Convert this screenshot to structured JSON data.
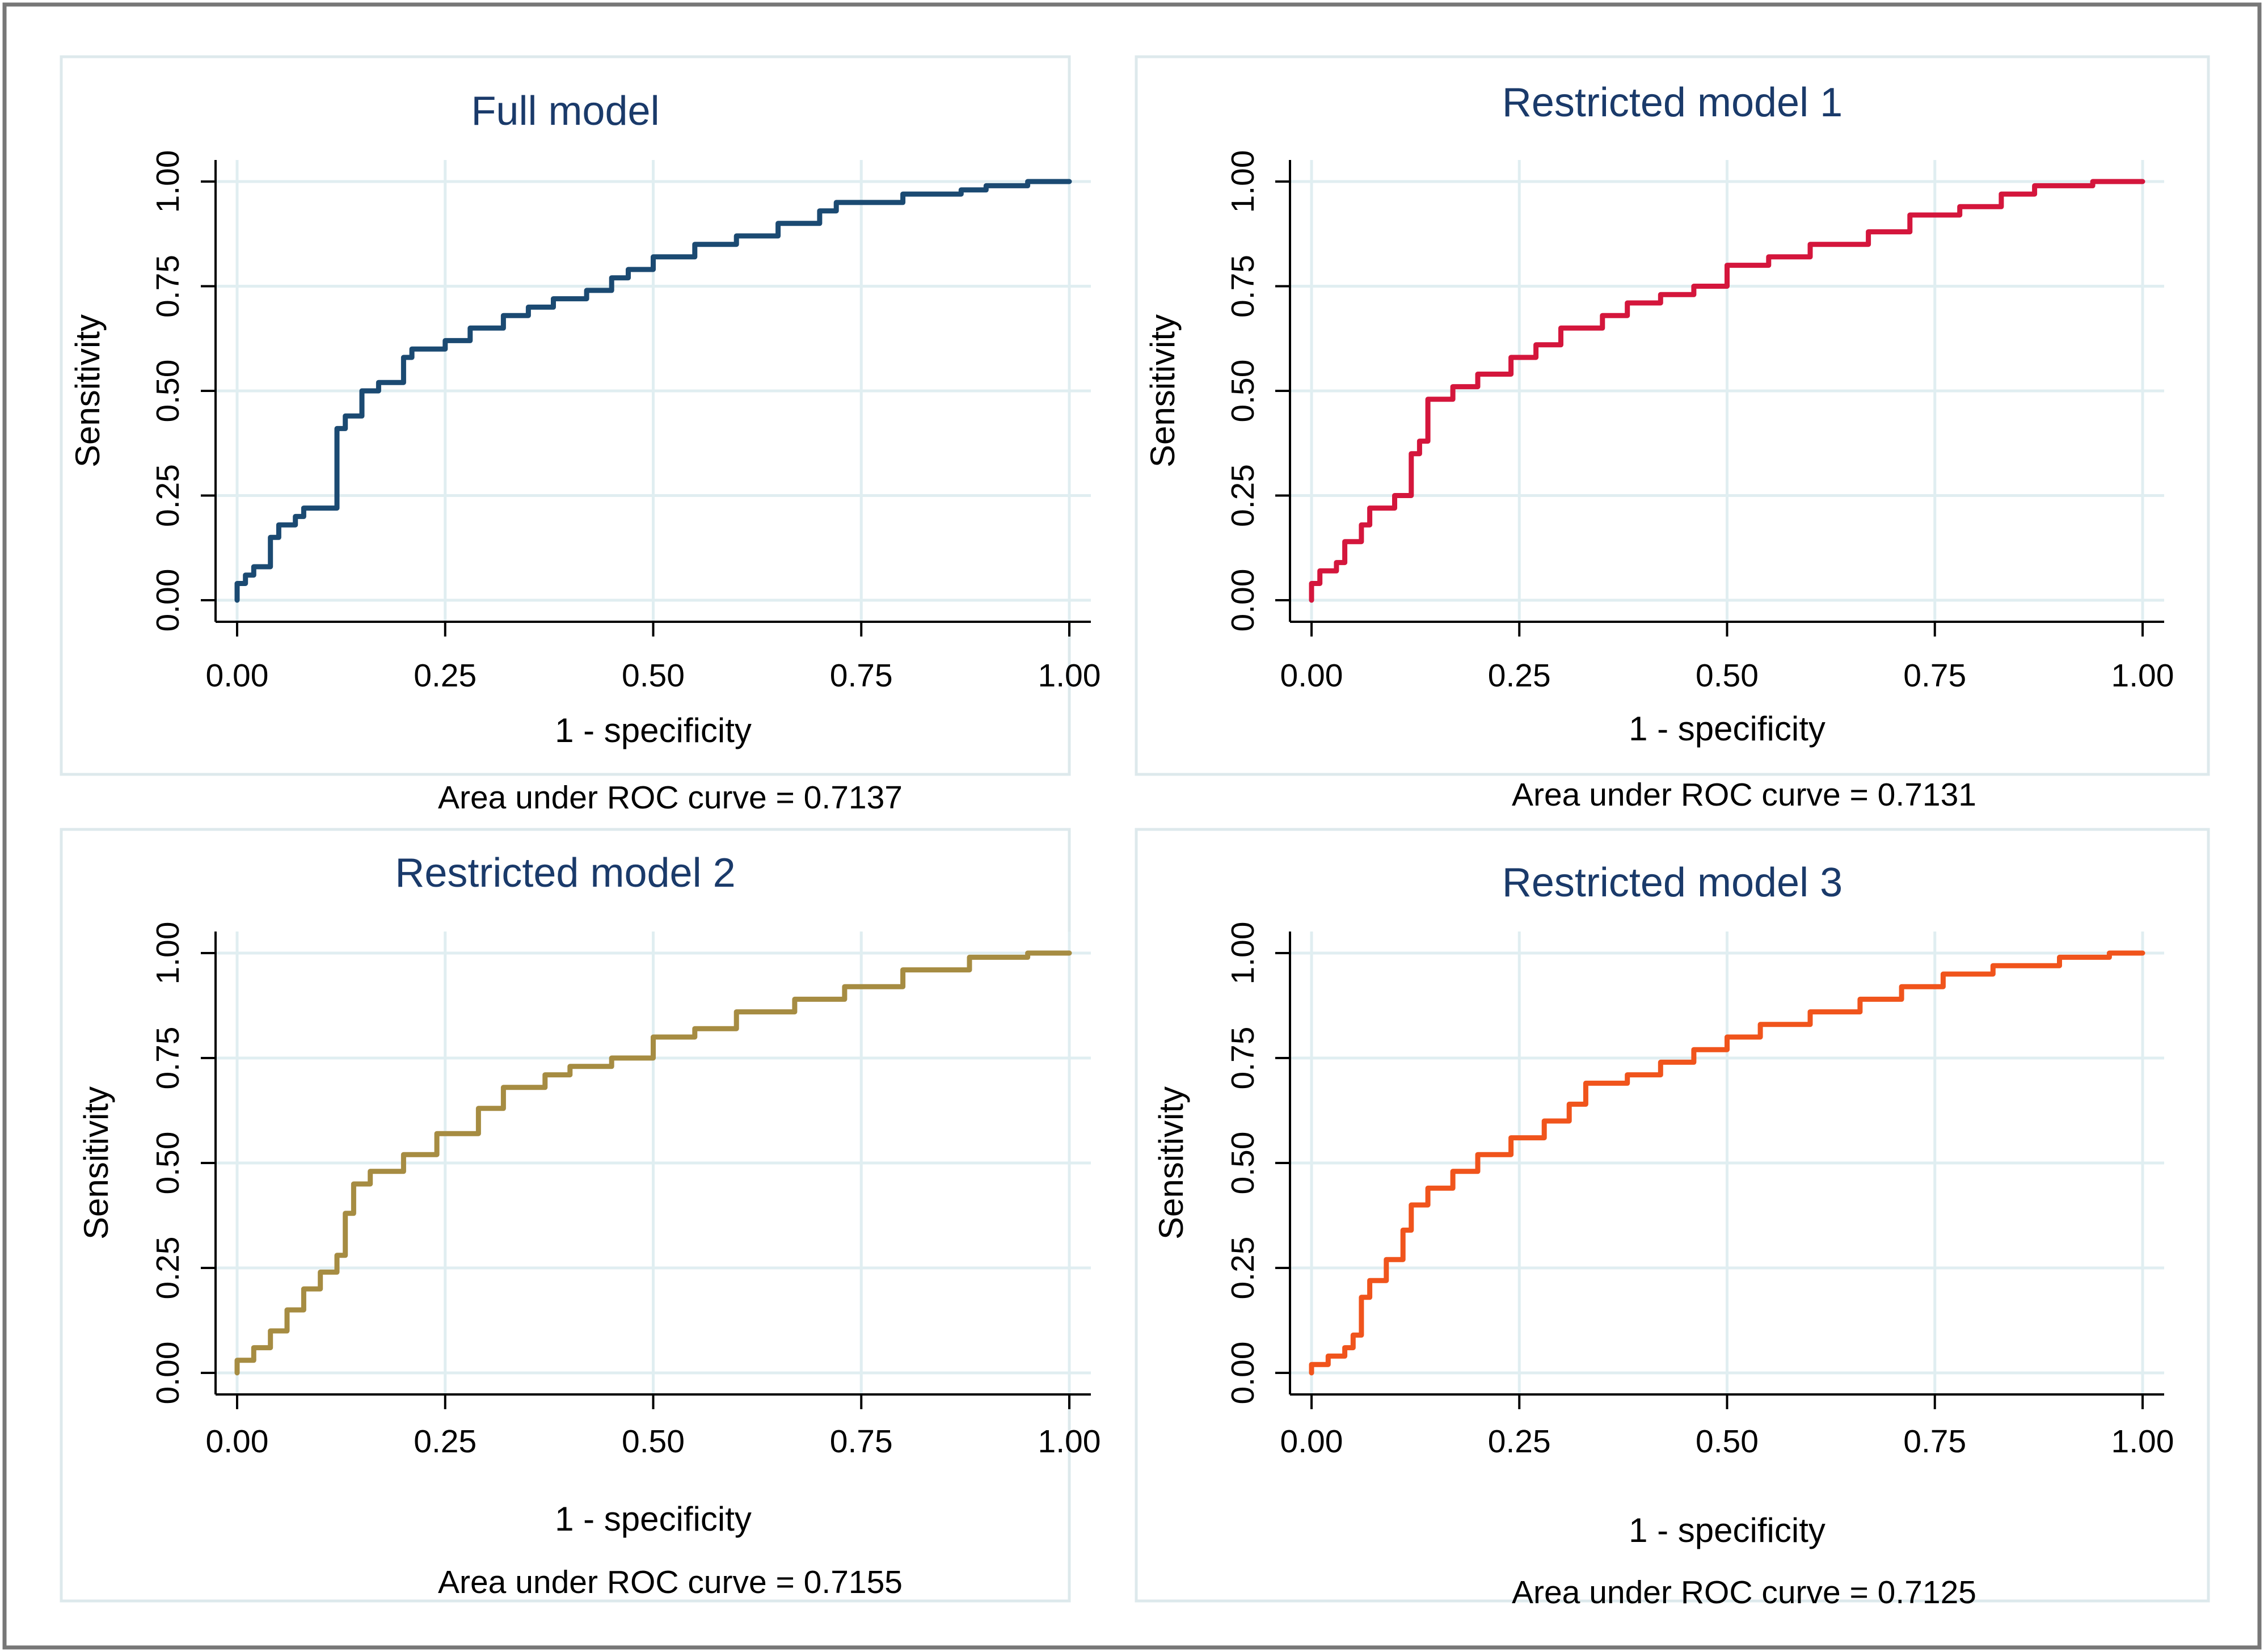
{
  "colors": {
    "outer_border": "#777777",
    "panel_border": "#dde9ec",
    "grid": "#e0eef1",
    "title": "#1a3a6a",
    "axis": "#000000"
  },
  "chart_data": [
    {
      "type": "line",
      "title": "Full model",
      "xlabel": "1 - specificity",
      "ylabel": "Sensitivity",
      "note": "Area under ROC curve = 0.7137",
      "xlim": [
        0,
        1
      ],
      "ylim": [
        0,
        1
      ],
      "xticks": [
        "0.00",
        "0.25",
        "0.50",
        "0.75",
        "1.00"
      ],
      "yticks": [
        "0.00",
        "0.25",
        "0.50",
        "0.75",
        "1.00"
      ],
      "grid": true,
      "color": "#1b4a72",
      "series": [
        {
          "name": "ROC",
          "x": [
            0,
            0,
            0.01,
            0.01,
            0.02,
            0.02,
            0.04,
            0.04,
            0.05,
            0.05,
            0.07,
            0.07,
            0.08,
            0.08,
            0.1,
            0.1,
            0.12,
            0.12,
            0.13,
            0.13,
            0.15,
            0.15,
            0.17,
            0.17,
            0.2,
            0.2,
            0.21,
            0.21,
            0.25,
            0.25,
            0.28,
            0.28,
            0.32,
            0.32,
            0.35,
            0.35,
            0.38,
            0.38,
            0.42,
            0.42,
            0.45,
            0.45,
            0.47,
            0.47,
            0.5,
            0.5,
            0.55,
            0.55,
            0.6,
            0.6,
            0.65,
            0.65,
            0.7,
            0.7,
            0.72,
            0.72,
            0.8,
            0.8,
            0.87,
            0.87,
            0.9,
            0.9,
            0.95,
            0.95,
            1
          ],
          "y": [
            0,
            0.04,
            0.04,
            0.06,
            0.06,
            0.08,
            0.08,
            0.15,
            0.15,
            0.18,
            0.18,
            0.2,
            0.2,
            0.22,
            0.22,
            0.22,
            0.22,
            0.41,
            0.41,
            0.44,
            0.44,
            0.5,
            0.5,
            0.52,
            0.52,
            0.58,
            0.58,
            0.6,
            0.6,
            0.62,
            0.62,
            0.65,
            0.65,
            0.68,
            0.68,
            0.7,
            0.7,
            0.72,
            0.72,
            0.74,
            0.74,
            0.77,
            0.77,
            0.79,
            0.79,
            0.82,
            0.82,
            0.85,
            0.85,
            0.87,
            0.87,
            0.9,
            0.9,
            0.93,
            0.93,
            0.95,
            0.95,
            0.97,
            0.97,
            0.98,
            0.98,
            0.99,
            0.99,
            1,
            1
          ]
        }
      ]
    },
    {
      "type": "line",
      "title": "Restricted model 1",
      "xlabel": "1 - specificity",
      "ylabel": "Sensitivity",
      "note": "Area under ROC curve = 0.7131",
      "xlim": [
        0,
        1
      ],
      "ylim": [
        0,
        1
      ],
      "xticks": [
        "0.00",
        "0.25",
        "0.50",
        "0.75",
        "1.00"
      ],
      "yticks": [
        "0.00",
        "0.25",
        "0.50",
        "0.75",
        "1.00"
      ],
      "grid": true,
      "color": "#d4163c",
      "series": [
        {
          "name": "ROC",
          "x": [
            0,
            0,
            0.01,
            0.01,
            0.03,
            0.03,
            0.04,
            0.04,
            0.06,
            0.06,
            0.07,
            0.07,
            0.1,
            0.1,
            0.12,
            0.12,
            0.12,
            0.13,
            0.13,
            0.14,
            0.14,
            0.17,
            0.17,
            0.2,
            0.2,
            0.24,
            0.24,
            0.27,
            0.27,
            0.3,
            0.3,
            0.35,
            0.35,
            0.38,
            0.38,
            0.42,
            0.42,
            0.46,
            0.46,
            0.5,
            0.5,
            0.55,
            0.55,
            0.6,
            0.6,
            0.67,
            0.67,
            0.72,
            0.72,
            0.78,
            0.78,
            0.83,
            0.83,
            0.87,
            0.87,
            0.94,
            0.94,
            1
          ],
          "y": [
            0,
            0.04,
            0.04,
            0.07,
            0.07,
            0.09,
            0.09,
            0.14,
            0.14,
            0.18,
            0.18,
            0.22,
            0.22,
            0.25,
            0.25,
            0.3,
            0.35,
            0.35,
            0.38,
            0.38,
            0.48,
            0.48,
            0.51,
            0.51,
            0.54,
            0.54,
            0.58,
            0.58,
            0.61,
            0.61,
            0.65,
            0.65,
            0.68,
            0.68,
            0.71,
            0.71,
            0.73,
            0.73,
            0.75,
            0.75,
            0.8,
            0.8,
            0.82,
            0.82,
            0.85,
            0.85,
            0.88,
            0.88,
            0.92,
            0.92,
            0.94,
            0.94,
            0.97,
            0.97,
            0.99,
            0.99,
            1,
            1
          ]
        }
      ]
    },
    {
      "type": "line",
      "title": "Restricted model 2",
      "xlabel": "1 - specificity",
      "ylabel": "Sensitivity",
      "note": "Area under ROC curve = 0.7155",
      "xlim": [
        0,
        1
      ],
      "ylim": [
        0,
        1
      ],
      "xticks": [
        "0.00",
        "0.25",
        "0.50",
        "0.75",
        "1.00"
      ],
      "yticks": [
        "0.00",
        "0.25",
        "0.50",
        "0.75",
        "1.00"
      ],
      "grid": true,
      "color": "#a68c42",
      "series": [
        {
          "name": "ROC",
          "x": [
            0,
            0,
            0.02,
            0.02,
            0.04,
            0.04,
            0.06,
            0.06,
            0.08,
            0.08,
            0.1,
            0.1,
            0.12,
            0.12,
            0.13,
            0.13,
            0.14,
            0.14,
            0.16,
            0.16,
            0.2,
            0.2,
            0.24,
            0.24,
            0.29,
            0.29,
            0.32,
            0.32,
            0.37,
            0.37,
            0.4,
            0.4,
            0.45,
            0.45,
            0.5,
            0.5,
            0.55,
            0.55,
            0.6,
            0.6,
            0.67,
            0.67,
            0.73,
            0.73,
            0.8,
            0.8,
            0.88,
            0.88,
            0.95,
            0.95,
            1
          ],
          "y": [
            0,
            0.03,
            0.03,
            0.06,
            0.06,
            0.1,
            0.1,
            0.15,
            0.15,
            0.2,
            0.2,
            0.24,
            0.24,
            0.28,
            0.28,
            0.38,
            0.38,
            0.45,
            0.45,
            0.48,
            0.48,
            0.52,
            0.52,
            0.57,
            0.57,
            0.63,
            0.63,
            0.68,
            0.68,
            0.71,
            0.71,
            0.73,
            0.73,
            0.75,
            0.75,
            0.8,
            0.8,
            0.82,
            0.82,
            0.86,
            0.86,
            0.89,
            0.89,
            0.92,
            0.92,
            0.96,
            0.96,
            0.99,
            0.99,
            1,
            1
          ]
        }
      ]
    },
    {
      "type": "line",
      "title": "Restricted model 3",
      "xlabel": "1 - specificity",
      "ylabel": "Sensitivity",
      "note": "Area under ROC curve = 0.7125",
      "xlim": [
        0,
        1
      ],
      "ylim": [
        0,
        1
      ],
      "xticks": [
        "0.00",
        "0.25",
        "0.50",
        "0.75",
        "1.00"
      ],
      "yticks": [
        "0.00",
        "0.25",
        "0.50",
        "0.75",
        "1.00"
      ],
      "grid": true,
      "color": "#f0541c",
      "series": [
        {
          "name": "ROC",
          "x": [
            0,
            0,
            0.02,
            0.02,
            0.04,
            0.04,
            0.05,
            0.05,
            0.06,
            0.06,
            0.07,
            0.07,
            0.09,
            0.09,
            0.11,
            0.11,
            0.12,
            0.12,
            0.14,
            0.14,
            0.17,
            0.17,
            0.2,
            0.2,
            0.24,
            0.24,
            0.28,
            0.28,
            0.31,
            0.31,
            0.33,
            0.33,
            0.38,
            0.38,
            0.42,
            0.42,
            0.46,
            0.46,
            0.5,
            0.5,
            0.54,
            0.54,
            0.6,
            0.6,
            0.66,
            0.66,
            0.71,
            0.71,
            0.76,
            0.76,
            0.82,
            0.82,
            0.9,
            0.9,
            0.96,
            0.96,
            1
          ],
          "y": [
            0,
            0.02,
            0.02,
            0.04,
            0.04,
            0.06,
            0.06,
            0.09,
            0.09,
            0.18,
            0.18,
            0.22,
            0.22,
            0.27,
            0.27,
            0.34,
            0.34,
            0.4,
            0.4,
            0.44,
            0.44,
            0.48,
            0.48,
            0.52,
            0.52,
            0.56,
            0.56,
            0.6,
            0.6,
            0.64,
            0.64,
            0.69,
            0.69,
            0.71,
            0.71,
            0.74,
            0.74,
            0.77,
            0.77,
            0.8,
            0.8,
            0.83,
            0.83,
            0.86,
            0.86,
            0.89,
            0.89,
            0.92,
            0.92,
            0.95,
            0.95,
            0.97,
            0.97,
            0.99,
            0.99,
            1,
            1
          ]
        }
      ]
    }
  ]
}
